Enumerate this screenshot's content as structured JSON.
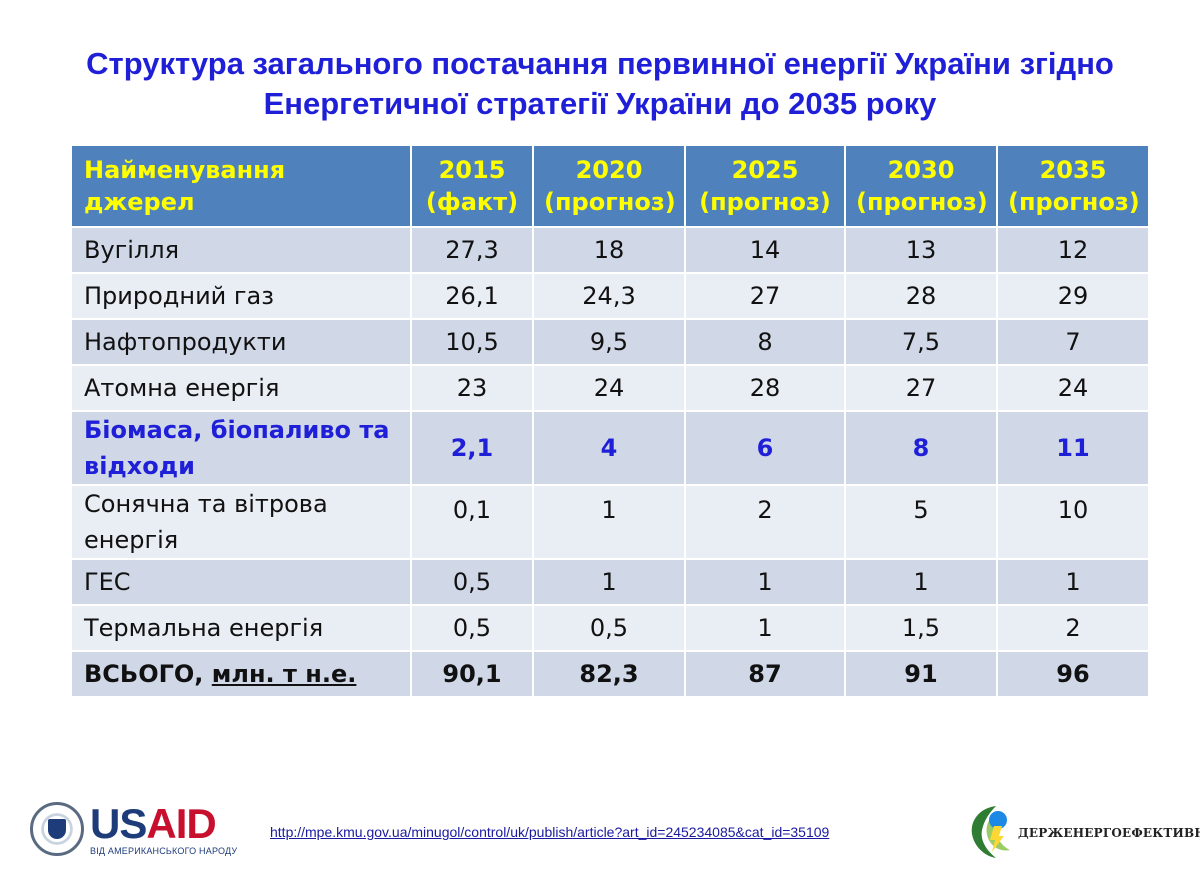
{
  "title": {
    "line1": "Структура загального постачання первинної енергії України згідно",
    "line2": "Енергетичної стратегії України до 2035 року"
  },
  "table": {
    "columns": {
      "name": "Найменування джерел",
      "years": [
        {
          "year": "2015",
          "note": "(факт)"
        },
        {
          "year": "2020",
          "note": "(прогноз)"
        },
        {
          "year": "2025",
          "note": "(прогноз)"
        },
        {
          "year": "2030",
          "note": "(прогноз)"
        },
        {
          "year": "2035",
          "note": "(прогноз)"
        }
      ]
    },
    "rows": [
      {
        "name": "Вугілля",
        "values": [
          "27,3",
          "18",
          "14",
          "13",
          "12"
        ]
      },
      {
        "name": "Природний газ",
        "values": [
          "26,1",
          "24,3",
          "27",
          "28",
          "29"
        ]
      },
      {
        "name": "Нафтопродукти",
        "values": [
          "10,5",
          "9,5",
          "8",
          "7,5",
          "7"
        ]
      },
      {
        "name": "Атомна енергія",
        "values": [
          "23",
          "24",
          "28",
          "27",
          "24"
        ]
      },
      {
        "name_line1": "Біомаса, біопаливо та",
        "name_line2": "відходи",
        "values": [
          "2,1",
          "4",
          "6",
          "8",
          "11"
        ],
        "highlight_color": "#1f1fd8"
      },
      {
        "name_line1": "Сонячна та вітрова",
        "name_line2": "енергія",
        "values": [
          "0,1",
          "1",
          "2",
          "5",
          "10"
        ]
      },
      {
        "name": "ГЕС",
        "values": [
          "0,5",
          "1",
          "1",
          "1",
          "1"
        ]
      },
      {
        "name": "Термальна енергія",
        "values": [
          "0,5",
          "0,5",
          "1",
          "1,5",
          "2"
        ]
      }
    ],
    "total": {
      "label": "ВСЬОГО,",
      "unit": "млн. т н.е.",
      "values": [
        "90,1",
        "82,3",
        "87",
        "91",
        "96"
      ]
    }
  },
  "footer": {
    "usaid_logo_text": "USAID",
    "usaid_tagline": "ВІД АМЕРИКАНСЬКОГО НАРОДУ",
    "source_url": "http://mpe.kmu.gov.ua/minugol/control/uk/publish/article?art_id=245234085&cat_id=35109",
    "agency_name": "ДЕРЖЕНЕРГОЕФЕКТИВНОСТІ"
  },
  "colors": {
    "title": "#1f1fd8",
    "header_bg": "#4f81bd",
    "header_text": "#ffff00",
    "row_dark": "#d0d8e8",
    "row_light": "#e9edf4",
    "usaid_blue": "#1e3c7a",
    "usaid_red": "#c8102e"
  }
}
